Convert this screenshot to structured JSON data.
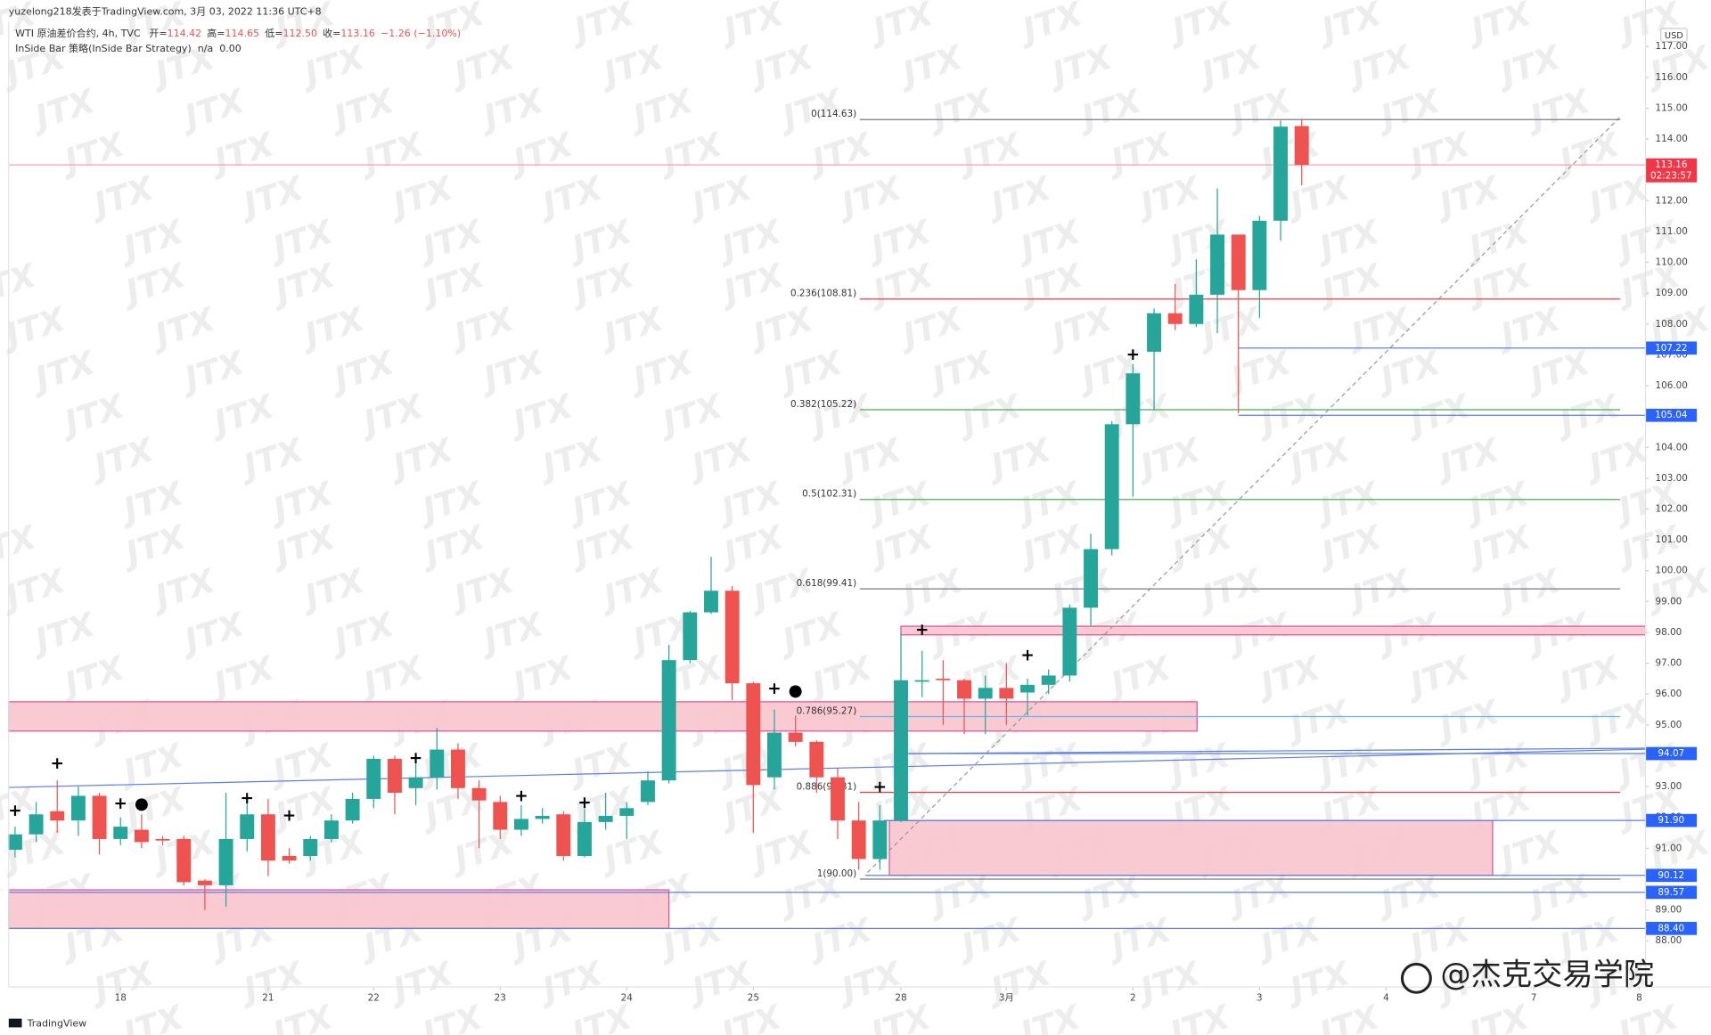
{
  "header": {
    "line1": "yuzelong218发表于TradingView.com, 3月 03, 2022 11:36 UTC+8",
    "symbol": "WTI 原油差价合约, 4h, TVC",
    "ohlc": [
      {
        "label": "开=",
        "value": "114.42"
      },
      {
        "label": "高=",
        "value": "114.65"
      },
      {
        "label": "低=",
        "value": "112.50"
      },
      {
        "label": "收=",
        "value": "113.16"
      }
    ],
    "change": "−1.26 (−1.10%)",
    "indicator": "InSide Bar 策略(InSide Bar Strategy)  n/a  0.00"
  },
  "brand": "TradingView",
  "credit": "@杰克交易学院",
  "watermark": "JTX",
  "chart_data": {
    "type": "candlestick",
    "currency": "USD",
    "up_color": "#26a69a",
    "down_color": "#ef5350",
    "open": [
      90.95,
      91.45,
      92.2,
      91.9,
      92.7,
      91.3,
      91.6,
      91.3,
      91.3,
      89.95,
      89.8,
      91.3,
      92.1,
      90.75,
      90.75,
      91.3,
      91.9,
      92.6,
      93.9,
      92.95,
      93.3,
      94.2,
      92.95,
      92.5,
      91.6,
      91.95,
      92.1,
      90.75,
      91.85,
      92.05,
      92.5,
      93.2,
      97.1,
      98.65,
      99.35,
      96.35,
      93.3,
      94.75,
      94.45,
      93.3,
      91.9,
      90.65,
      91.9,
      96.4,
      96.5,
      96.45,
      95.85,
      96.2,
      96.05,
      96.3,
      96.6,
      98.8,
      100.7,
      104.75,
      107.1,
      108.35,
      108.0,
      108.95,
      110.9,
      109.1,
      111.35,
      114.42
    ],
    "high": [
      91.7,
      92.5,
      93.2,
      93.0,
      92.8,
      92.0,
      92.1,
      91.4,
      91.4,
      90.0,
      92.8,
      92.5,
      92.6,
      91.0,
      91.4,
      92.1,
      92.8,
      94.0,
      94.0,
      93.9,
      94.9,
      94.4,
      93.2,
      92.7,
      92.4,
      92.3,
      92.2,
      92.3,
      92.8,
      92.5,
      93.5,
      97.6,
      98.7,
      100.45,
      99.5,
      96.4,
      95.5,
      95.3,
      94.5,
      93.6,
      92.5,
      92.4,
      98.0,
      97.4,
      97.1,
      96.5,
      96.6,
      97.0,
      96.5,
      96.8,
      98.9,
      101.2,
      104.85,
      106.7,
      108.5,
      109.3,
      110.1,
      112.4,
      110.9,
      111.5,
      114.6,
      114.65
    ],
    "low": [
      90.7,
      91.2,
      91.5,
      91.4,
      90.8,
      91.1,
      91.0,
      91.1,
      89.8,
      89.0,
      89.1,
      90.9,
      90.1,
      90.5,
      90.6,
      91.2,
      91.8,
      92.3,
      92.1,
      92.4,
      92.9,
      92.6,
      91.0,
      91.3,
      91.4,
      91.8,
      90.6,
      90.7,
      91.6,
      91.3,
      92.4,
      93.1,
      97.0,
      98.6,
      95.8,
      91.5,
      92.9,
      94.3,
      92.8,
      91.3,
      90.3,
      90.3,
      91.85,
      95.9,
      95.0,
      94.7,
      94.7,
      95.0,
      95.3,
      96.0,
      96.4,
      98.2,
      100.5,
      102.4,
      105.2,
      107.8,
      107.9,
      107.7,
      105.1,
      108.2,
      110.7,
      112.5
    ],
    "close": [
      91.45,
      92.1,
      91.9,
      92.7,
      91.3,
      91.7,
      91.2,
      91.25,
      89.9,
      89.8,
      91.3,
      92.1,
      90.6,
      90.6,
      91.3,
      91.9,
      92.6,
      93.9,
      92.8,
      93.3,
      94.2,
      92.95,
      92.55,
      91.6,
      91.95,
      92.05,
      90.75,
      91.85,
      92.05,
      92.3,
      93.2,
      97.1,
      98.65,
      99.35,
      96.35,
      93.05,
      94.75,
      94.45,
      93.3,
      91.9,
      90.65,
      91.9,
      96.45,
      96.45,
      96.45,
      95.85,
      96.2,
      95.85,
      96.3,
      96.6,
      98.8,
      100.7,
      104.75,
      106.4,
      108.35,
      108.0,
      108.95,
      110.9,
      109.1,
      111.35,
      114.4,
      113.16
    ],
    "xlim": [
      -0.3,
      77.3
    ],
    "xticks": [
      {
        "value": 5,
        "label": "18"
      },
      {
        "value": 12,
        "label": "21"
      },
      {
        "value": 17,
        "label": "22"
      },
      {
        "value": 23,
        "label": "23"
      },
      {
        "value": 29,
        "label": "24"
      },
      {
        "value": 35,
        "label": "25"
      },
      {
        "value": 42,
        "label": "28"
      },
      {
        "value": 47,
        "label": "3月"
      },
      {
        "value": 53,
        "label": "2"
      },
      {
        "value": 59,
        "label": "3"
      },
      {
        "value": 65,
        "label": "4"
      },
      {
        "value": 72,
        "label": "7"
      },
      {
        "value": 77,
        "label": "8"
      }
    ],
    "ylim": [
      86.5,
      117.8
    ],
    "yticks": [
      {
        "value": 88,
        "label": "88.00"
      },
      {
        "value": 89,
        "label": "89.00"
      },
      {
        "value": 90,
        "label": "90.00"
      },
      {
        "value": 91,
        "label": "91.00"
      },
      {
        "value": 92,
        "label": "92.00"
      },
      {
        "value": 93,
        "label": "93.00"
      },
      {
        "value": 94,
        "label": "94.00"
      },
      {
        "value": 95,
        "label": "95.00"
      },
      {
        "value": 96,
        "label": "96.00"
      },
      {
        "value": 97,
        "label": "97.00"
      },
      {
        "value": 98,
        "label": "98.00"
      },
      {
        "value": 99,
        "label": "99.00"
      },
      {
        "value": 100,
        "label": "100.00"
      },
      {
        "value": 101,
        "label": "101.00"
      },
      {
        "value": 102,
        "label": "102.00"
      },
      {
        "value": 103,
        "label": "103.00"
      },
      {
        "value": 104,
        "label": "104.00"
      },
      {
        "value": 105,
        "label": "105.00"
      },
      {
        "value": 106,
        "label": "106.00"
      },
      {
        "value": 107,
        "label": "107.00"
      },
      {
        "value": 108,
        "label": "108.00"
      },
      {
        "value": 109,
        "label": "109.00"
      },
      {
        "value": 110,
        "label": "110.00"
      },
      {
        "value": 111,
        "label": "111.00"
      },
      {
        "value": 112,
        "label": "112.00"
      },
      {
        "value": 113,
        "label": "113.00"
      },
      {
        "value": 114,
        "label": "114.00"
      },
      {
        "value": 115,
        "label": "115.00"
      },
      {
        "value": 116,
        "label": "116.00"
      },
      {
        "value": 117,
        "label": "117.00"
      }
    ],
    "grid": false,
    "last_price": 113.16,
    "countdown": "02:23:57",
    "fib": {
      "x": [
        40.05,
        76.1
      ],
      "levels": [
        {
          "label": "0(114.63)",
          "value": 114.63,
          "color": "#787b86"
        },
        {
          "label": "0.236(108.81)",
          "value": 108.81,
          "color": "#f23645"
        },
        {
          "label": "0.382(105.22)",
          "value": 105.22,
          "color": "#4caf50"
        },
        {
          "label": "0.5(102.31)",
          "value": 102.31,
          "color": "#4caf50"
        },
        {
          "label": "0.618(99.41)",
          "value": 99.41,
          "color": "#787b86"
        },
        {
          "label": "0.786(95.27)",
          "value": 95.27,
          "color": "#64b5f6"
        },
        {
          "label": "0.886(92.81)",
          "value": 92.81,
          "color": "#f23645"
        },
        {
          "label": "1(90.00)",
          "value": 90.0,
          "color": "#787b86"
        }
      ]
    },
    "zones": [
      {
        "top": 95.75,
        "bottom": 94.8,
        "x": [
          -0.3,
          56.04
        ]
      },
      {
        "top": 98.2,
        "bottom": 97.92,
        "x": [
          42.0,
          77.3
        ]
      },
      {
        "top": 91.9,
        "bottom": 90.12,
        "x": [
          41.45,
          70.05
        ]
      },
      {
        "top": 89.65,
        "bottom": 88.4,
        "x": [
          -0.3,
          31.0
        ]
      }
    ],
    "levels": [
      {
        "value": 107.22,
        "label": "107.22",
        "from": 58.0
      },
      {
        "value": 105.04,
        "label": "105.04",
        "from": 58.0
      },
      {
        "value": 94.07,
        "label": "94.07",
        "from": 42.3
      },
      {
        "value": 91.9,
        "label": "91.90",
        "from": 41.2
      },
      {
        "value": 90.12,
        "label": "90.12",
        "from": 40.3
      },
      {
        "value": 89.57,
        "label": "89.57",
        "from": -0.3
      },
      {
        "value": 88.4,
        "label": "88.40",
        "from": -0.3
      }
    ],
    "signals": [
      {
        "index": 0,
        "price": 92.2,
        "symbol": "+"
      },
      {
        "index": 2,
        "price": 93.73,
        "symbol": "+"
      },
      {
        "index": 5,
        "price": 92.42,
        "symbol": "+"
      },
      {
        "index": 6,
        "price": 92.42,
        "symbol": "●"
      },
      {
        "index": 11,
        "price": 92.6,
        "symbol": "+"
      },
      {
        "index": 13,
        "price": 92.04,
        "symbol": "+"
      },
      {
        "index": 19,
        "price": 93.9,
        "symbol": "+"
      },
      {
        "index": 24,
        "price": 92.67,
        "symbol": "+"
      },
      {
        "index": 27,
        "price": 92.46,
        "symbol": "+"
      },
      {
        "index": 36,
        "price": 96.15,
        "symbol": "+"
      },
      {
        "index": 37,
        "price": 96.1,
        "symbol": "●"
      },
      {
        "index": 41,
        "price": 92.96,
        "symbol": "+"
      },
      {
        "index": 43,
        "price": 98.06,
        "symbol": "+"
      },
      {
        "index": 48,
        "price": 97.24,
        "symbol": "+"
      },
      {
        "index": 53,
        "price": 106.98,
        "symbol": "+"
      }
    ]
  }
}
